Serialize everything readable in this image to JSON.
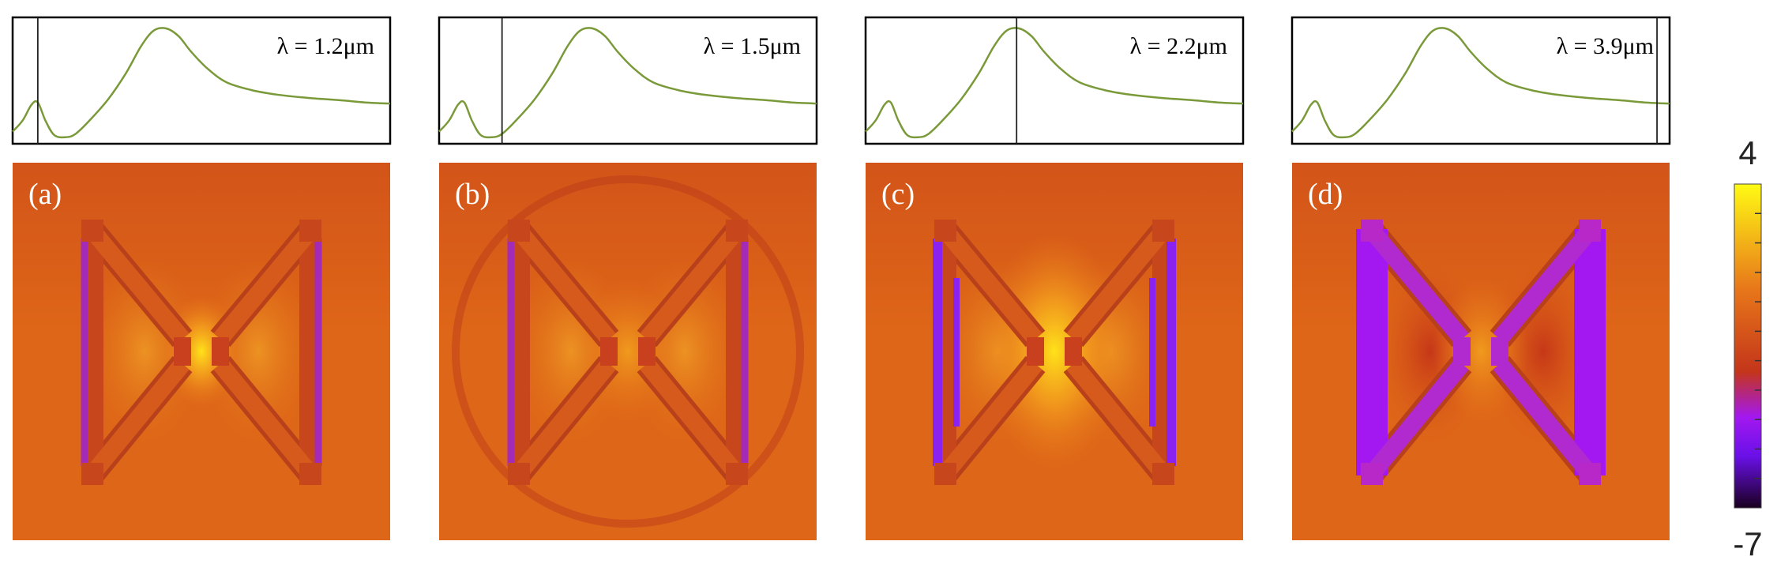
{
  "figure": {
    "panels": [
      {
        "id": "a",
        "letter": "(a)",
        "wavelength_label": "λ = 1.2μm",
        "marker_wavelength_um": 1.2,
        "style": "dim"
      },
      {
        "id": "b",
        "letter": "(b)",
        "wavelength_label": "λ = 1.5μm",
        "marker_wavelength_um": 1.5,
        "style": "ring"
      },
      {
        "id": "c",
        "letter": "(c)",
        "wavelength_label": "λ = 2.2μm",
        "marker_wavelength_um": 2.2,
        "style": "hot"
      },
      {
        "id": "d",
        "letter": "(d)",
        "wavelength_label": "λ = 3.9μm",
        "marker_wavelength_um": 3.9,
        "style": "purple"
      }
    ],
    "colorbar": {
      "max_label": "4",
      "min_label": "-7",
      "max": 4,
      "min": -7
    },
    "colors": {
      "spectrum_line": "#7a9a3a",
      "background_field": "#de6618",
      "cmap_top": "#fffb14",
      "cmap_orange": "#e8781a",
      "cmap_red": "#c4351a",
      "cmap_purple": "#a318f0",
      "cmap_violet": "#6a10e8",
      "cmap_bottom": "#1a0020"
    }
  },
  "chart_data": {
    "type": "line",
    "title": "",
    "xlabel": "",
    "ylabel": "",
    "xlim": [
      1.0,
      4.0
    ],
    "ylim": [
      0,
      1
    ],
    "series": [
      {
        "x": [
          1.0,
          1.08,
          1.15,
          1.2,
          1.26,
          1.33,
          1.42,
          1.5,
          1.62,
          1.76,
          1.9,
          2.02,
          2.12,
          2.22,
          2.32,
          2.42,
          2.55,
          2.7,
          2.9,
          3.1,
          3.35,
          3.6,
          3.8,
          4.0
        ],
        "y": [
          0.08,
          0.18,
          0.32,
          0.34,
          0.18,
          0.05,
          0.03,
          0.06,
          0.19,
          0.37,
          0.6,
          0.84,
          0.98,
          1.0,
          0.93,
          0.79,
          0.64,
          0.52,
          0.45,
          0.41,
          0.38,
          0.36,
          0.34,
          0.33
        ]
      }
    ]
  }
}
